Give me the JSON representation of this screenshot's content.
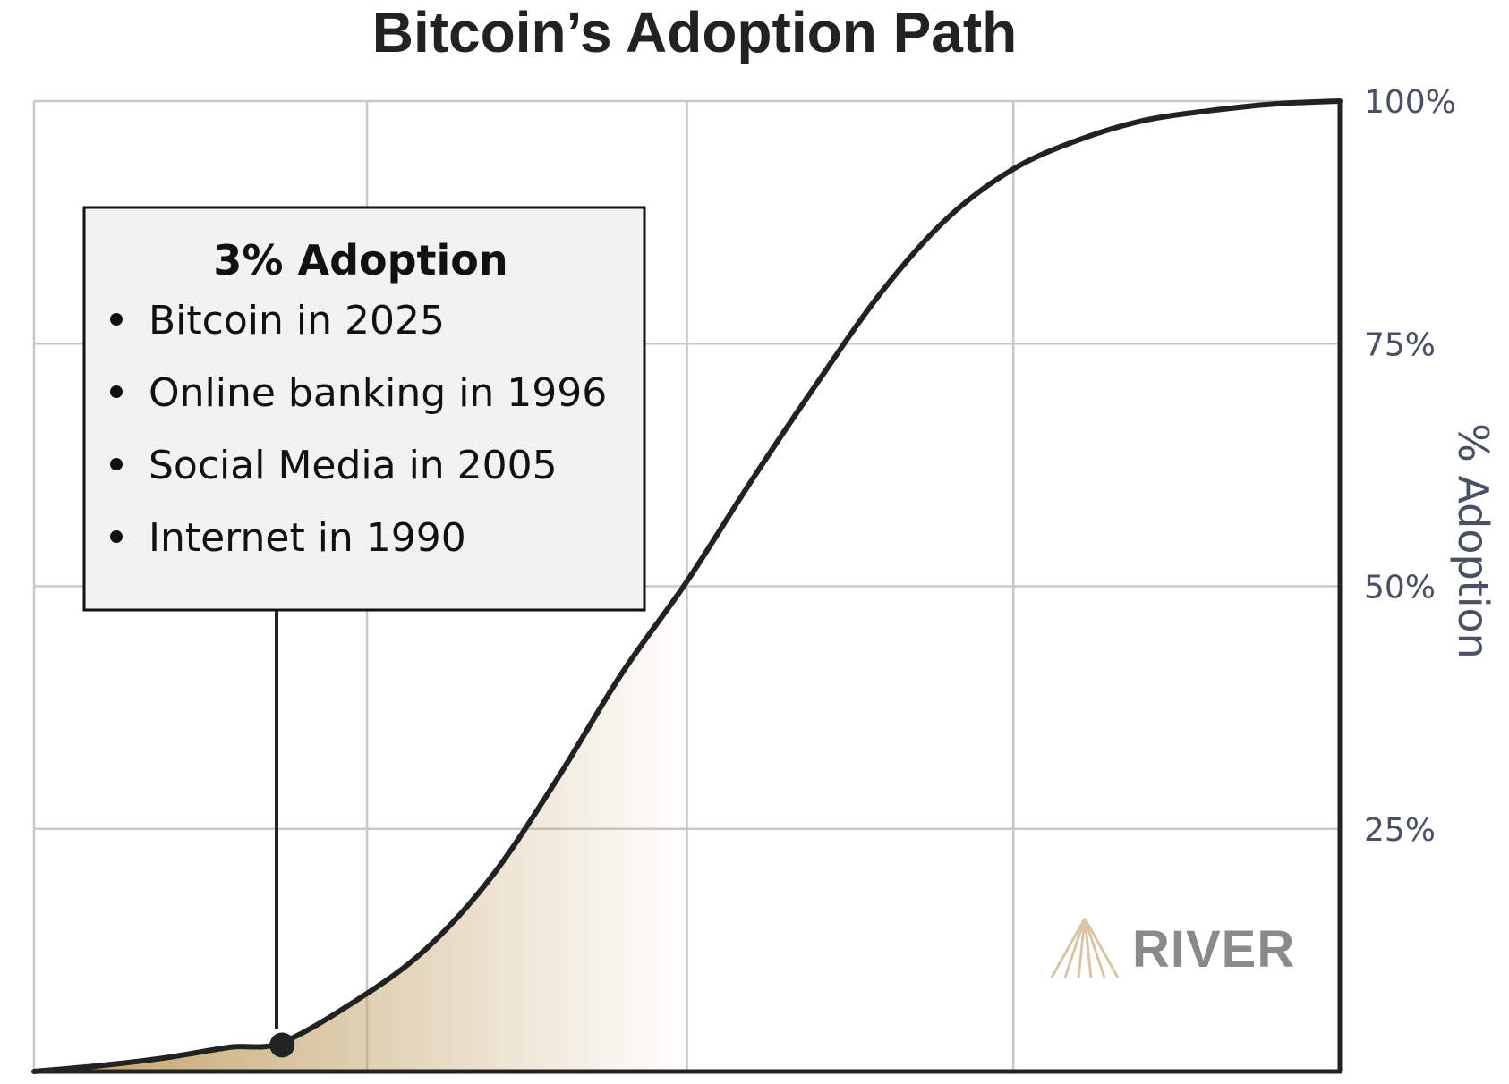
{
  "chart_data": {
    "type": "area",
    "title": "Bitcoin’s Adoption Path",
    "ylabel": "% Adoption",
    "xlabel": "",
    "ylim": [
      0,
      100
    ],
    "yticks": [
      {
        "value": 25,
        "label": "25%"
      },
      {
        "value": 50,
        "label": "50%"
      },
      {
        "value": 75,
        "label": "75%"
      },
      {
        "value": 100,
        "label": "100%"
      }
    ],
    "x_ticks_labeled": false,
    "grid": true,
    "y_axis_side": "right",
    "series": [
      {
        "x": [
          0,
          0.05,
          0.1,
          0.15,
          0.19,
          0.25,
          0.3,
          0.35,
          0.4,
          0.45,
          0.5,
          0.55,
          0.6,
          0.65,
          0.7,
          0.75,
          0.8,
          0.85,
          0.9,
          0.95,
          1.0
        ],
        "values": [
          0,
          0.6,
          1.4,
          2.5,
          3,
          7.6,
          12.6,
          20,
          30,
          41,
          50.5,
          61,
          71,
          80.5,
          88,
          93,
          96,
          98,
          99,
          99.7,
          100
        ]
      }
    ],
    "shaded_region": {
      "x_from": 0,
      "x_to": 0.5,
      "color": "#bf9f62"
    },
    "marker": {
      "x": 0.19,
      "y": 3
    },
    "annotation": {
      "heading": "3% Adoption",
      "items": [
        "Bitcoin in 2025",
        "Online banking in 1996",
        "Social Media in 2005",
        "Internet in 1990"
      ]
    }
  },
  "colors": {
    "curve": "#222222",
    "grid": "#c8c8c8",
    "fill": "#bf9f62",
    "box_bg": "#f2f2f2",
    "logo": "#d7c7a6",
    "brand_text": "#8a8a8a"
  },
  "brand": "RIVER"
}
